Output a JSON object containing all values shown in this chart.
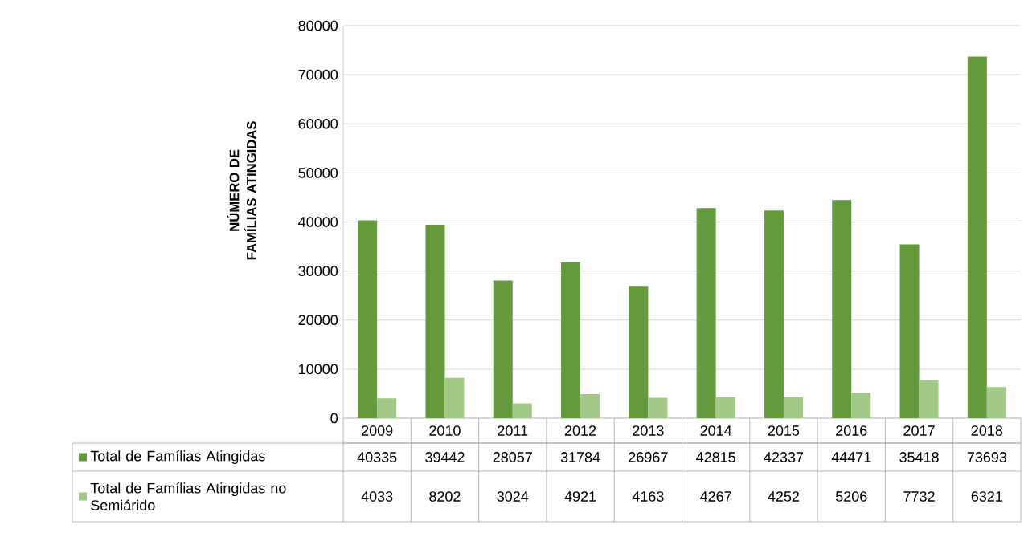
{
  "chart_data": {
    "type": "bar",
    "ylabel": "NÚMERO DE FAMÍLIAS ATINGIDAS",
    "categories": [
      "2009",
      "2010",
      "2011",
      "2012",
      "2013",
      "2014",
      "2015",
      "2016",
      "2017",
      "2018"
    ],
    "series": [
      {
        "name": "Total de Famílias Atingidas",
        "color": "#639a3e",
        "values": [
          40335,
          39442,
          28057,
          31784,
          26967,
          42815,
          42337,
          44471,
          35418,
          73693
        ]
      },
      {
        "name": "Total de Famílias Atingidas no Semiárido",
        "color": "#a3c98a",
        "values": [
          4033,
          8202,
          3024,
          4921,
          4163,
          4267,
          4252,
          5206,
          7732,
          6321
        ]
      }
    ],
    "ylim": [
      0,
      80000
    ],
    "yticks": [
      0,
      10000,
      20000,
      30000,
      40000,
      50000,
      60000,
      70000,
      80000
    ],
    "grid": "y",
    "legend": "bottom",
    "data_labels": true
  }
}
